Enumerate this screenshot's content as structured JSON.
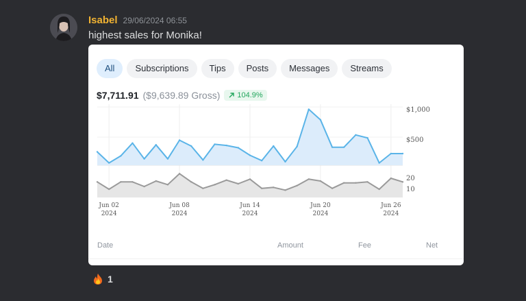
{
  "message": {
    "author": "Isabel",
    "timestamp": "29/06/2024 06:55",
    "text": "highest sales for Monika!"
  },
  "embed": {
    "tabs": [
      {
        "label": "All",
        "active": true
      },
      {
        "label": "Subscriptions",
        "active": false
      },
      {
        "label": "Tips",
        "active": false
      },
      {
        "label": "Posts",
        "active": false
      },
      {
        "label": "Messages",
        "active": false
      },
      {
        "label": "Streams",
        "active": false
      }
    ],
    "net_amount": "$7,711.91",
    "gross_amount": "($9,639.89 Gross)",
    "growth": "104.9%",
    "table_headers": [
      "Date",
      "Amount",
      "Fee",
      "Net"
    ]
  },
  "reaction": {
    "emoji": "🔥",
    "count": "1"
  },
  "colors": {
    "author": "#f0b232",
    "main_line": "#5ab4e8",
    "main_fill": "#dcecfb",
    "sub_line": "#9a9a9a",
    "sub_fill": "#e6e6e6"
  },
  "chart_data": [
    {
      "type": "area",
      "x": [
        "Jun 01",
        "Jun 02",
        "Jun 03",
        "Jun 04",
        "Jun 05",
        "Jun 06",
        "Jun 07",
        "Jun 08",
        "Jun 09",
        "Jun 10",
        "Jun 11",
        "Jun 12",
        "Jun 13",
        "Jun 14",
        "Jun 15",
        "Jun 16",
        "Jun 17",
        "Jun 18",
        "Jun 19",
        "Jun 20",
        "Jun 21",
        "Jun 22",
        "Jun 23",
        "Jun 24",
        "Jun 25",
        "Jun 26",
        "Jun 27"
      ],
      "values": [
        230,
        40,
        160,
        380,
        110,
        350,
        110,
        430,
        330,
        90,
        360,
        340,
        300,
        170,
        80,
        330,
        60,
        320,
        960,
        780,
        310,
        310,
        520,
        470,
        40,
        200,
        200
      ],
      "tick_labels": [
        "Jun 02\n2024",
        "Jun 08\n2024",
        "Jun 14\n2024",
        "Jun 20\n2024",
        "Jun 26\n2024"
      ],
      "y_ticks": [
        "$1,000",
        "$500"
      ],
      "ylim": [
        0,
        1000
      ]
    },
    {
      "type": "area",
      "x": [
        "Jun 01",
        "Jun 02",
        "Jun 03",
        "Jun 04",
        "Jun 05",
        "Jun 06",
        "Jun 07",
        "Jun 08",
        "Jun 09",
        "Jun 10",
        "Jun 11",
        "Jun 12",
        "Jun 13",
        "Jun 14",
        "Jun 15",
        "Jun 16",
        "Jun 17",
        "Jun 18",
        "Jun 19",
        "Jun 20",
        "Jun 21",
        "Jun 22",
        "Jun 23",
        "Jun 24",
        "Jun 25",
        "Jun 26",
        "Jun 27"
      ],
      "values": [
        17,
        9,
        17,
        17,
        12,
        18,
        14,
        26,
        17,
        10,
        14,
        19,
        15,
        20,
        10,
        11,
        8,
        13,
        20,
        18,
        10,
        16,
        16,
        17,
        9,
        21,
        17
      ],
      "y_ticks": [
        "20",
        "10"
      ],
      "ylim": [
        0,
        30
      ]
    }
  ]
}
